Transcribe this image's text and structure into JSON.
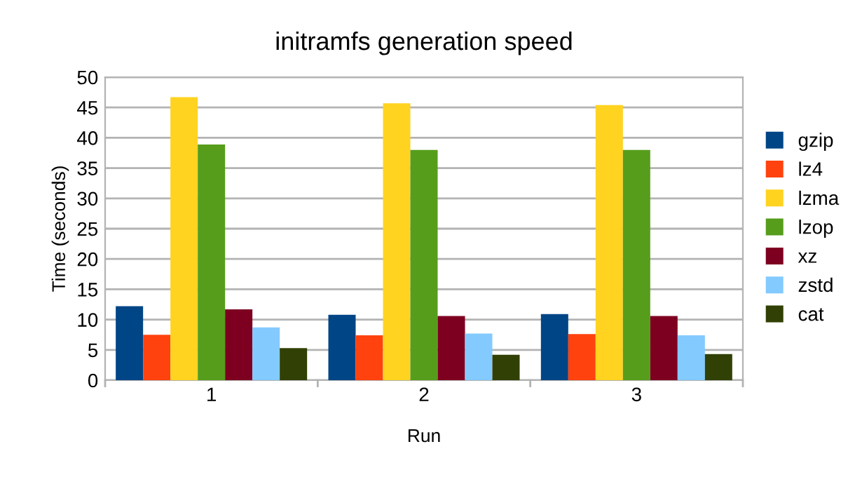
{
  "chart_data": {
    "type": "bar",
    "title": "initramfs generation speed",
    "xlabel": "Run",
    "ylabel": "Time (seconds)",
    "categories": [
      "1",
      "2",
      "3"
    ],
    "series": [
      {
        "name": "gzip",
        "color": "#004586",
        "values": [
          12.2,
          10.8,
          10.9
        ]
      },
      {
        "name": "lz4",
        "color": "#ff420e",
        "values": [
          7.5,
          7.4,
          7.6
        ]
      },
      {
        "name": "lzma",
        "color": "#ffd320",
        "values": [
          46.7,
          45.7,
          45.4
        ]
      },
      {
        "name": "lzop",
        "color": "#579d1c",
        "values": [
          38.9,
          38.0,
          38.0
        ]
      },
      {
        "name": "xz",
        "color": "#7e0021",
        "values": [
          11.7,
          10.6,
          10.6
        ]
      },
      {
        "name": "zstd",
        "color": "#83caff",
        "values": [
          8.7,
          7.7,
          7.4
        ]
      },
      {
        "name": "cat",
        "color": "#314004",
        "values": [
          5.3,
          4.2,
          4.3
        ]
      }
    ],
    "ylim": [
      0,
      50
    ],
    "yticks": [
      0,
      5,
      10,
      15,
      20,
      25,
      30,
      35,
      40,
      45,
      50
    ],
    "grid": "y",
    "legend": "right"
  }
}
